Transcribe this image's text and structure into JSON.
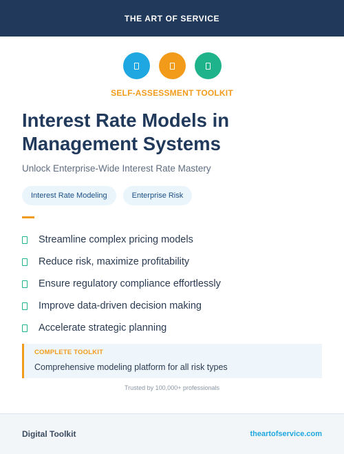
{
  "header": {
    "brand": "THE ART OF SERVICE"
  },
  "icons": [
    {
      "name": "document-icon",
      "color": "#1ea7e0"
    },
    {
      "name": "document-icon",
      "color": "#f29b1b"
    },
    {
      "name": "document-icon",
      "color": "#1fb38c"
    }
  ],
  "hero": {
    "eyebrow": "SELF-ASSESSMENT TOOLKIT",
    "title": "Interest Rate Models in Management Systems",
    "subtitle": "Unlock Enterprise-Wide Interest Rate Mastery"
  },
  "tags": [
    "Interest Rate Modeling",
    "Enterprise Risk"
  ],
  "benefits": [
    "Streamline complex pricing models",
    "Reduce risk, maximize profitability",
    "Ensure regulatory compliance effortlessly",
    "Improve data-driven decision making",
    "Accelerate strategic planning"
  ],
  "callout": {
    "label": "COMPLETE TOOLKIT",
    "text": "Comprehensive modeling platform for all risk types"
  },
  "trust": "Trusted by 100,000+ professionals",
  "footer": {
    "left": "Digital Toolkit",
    "right": "theartofservice.com"
  },
  "colors": {
    "navy": "#213a5c",
    "accent_orange": "#f29b1b",
    "accent_blue": "#1ea7e0",
    "accent_green": "#1fb38c"
  }
}
